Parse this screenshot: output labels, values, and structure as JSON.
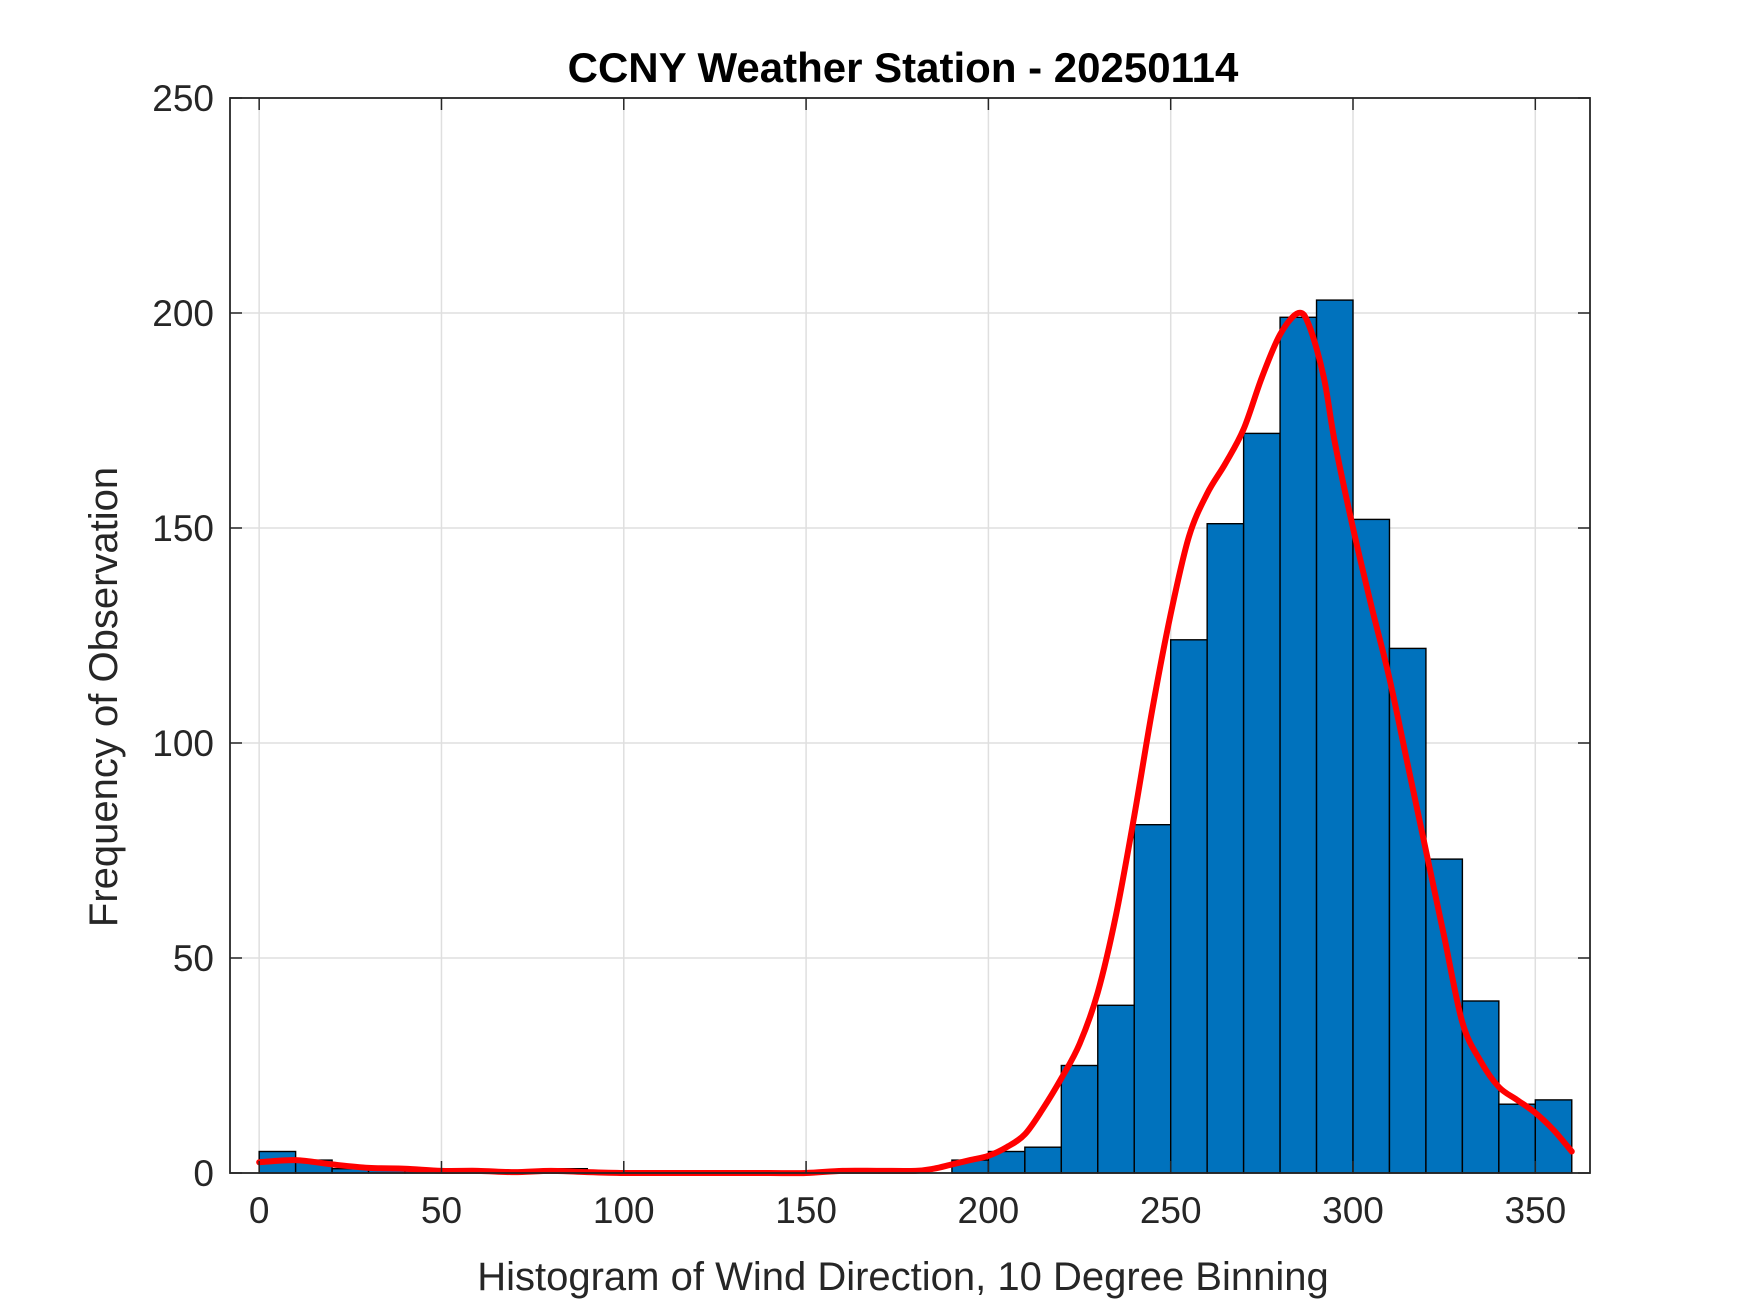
{
  "chart_data": {
    "type": "bar",
    "title": "CCNY Weather Station - 20250114",
    "xlabel": "Histogram of Wind Direction, 10 Degree Binning",
    "ylabel": "Frequency of Observation",
    "xlim": [
      -8,
      365
    ],
    "ylim": [
      0,
      250
    ],
    "xticks": [
      0,
      50,
      100,
      150,
      200,
      250,
      300,
      350
    ],
    "yticks": [
      0,
      50,
      100,
      150,
      200,
      250
    ],
    "grid": true,
    "bin_width": 10,
    "bins": [
      {
        "start": 0,
        "value": 5
      },
      {
        "start": 10,
        "value": 3
      },
      {
        "start": 20,
        "value": 1
      },
      {
        "start": 30,
        "value": 1
      },
      {
        "start": 40,
        "value": 1
      },
      {
        "start": 50,
        "value": 1
      },
      {
        "start": 60,
        "value": 0
      },
      {
        "start": 70,
        "value": 0
      },
      {
        "start": 80,
        "value": 1
      },
      {
        "start": 90,
        "value": 0
      },
      {
        "start": 100,
        "value": 0
      },
      {
        "start": 110,
        "value": 0
      },
      {
        "start": 120,
        "value": 0
      },
      {
        "start": 130,
        "value": 0
      },
      {
        "start": 140,
        "value": 0
      },
      {
        "start": 150,
        "value": 0
      },
      {
        "start": 160,
        "value": 1
      },
      {
        "start": 170,
        "value": 1
      },
      {
        "start": 180,
        "value": 0
      },
      {
        "start": 190,
        "value": 3
      },
      {
        "start": 200,
        "value": 5
      },
      {
        "start": 210,
        "value": 6
      },
      {
        "start": 220,
        "value": 25
      },
      {
        "start": 230,
        "value": 39
      },
      {
        "start": 240,
        "value": 81
      },
      {
        "start": 250,
        "value": 124
      },
      {
        "start": 260,
        "value": 151
      },
      {
        "start": 270,
        "value": 172
      },
      {
        "start": 280,
        "value": 199
      },
      {
        "start": 290,
        "value": 203
      },
      {
        "start": 300,
        "value": 152
      },
      {
        "start": 310,
        "value": 122
      },
      {
        "start": 320,
        "value": 73
      },
      {
        "start": 330,
        "value": 40
      },
      {
        "start": 340,
        "value": 16
      },
      {
        "start": 350,
        "value": 17
      }
    ],
    "fit_curve": {
      "x": [
        0,
        10,
        20,
        30,
        40,
        50,
        60,
        70,
        80,
        90,
        100,
        110,
        120,
        130,
        140,
        150,
        160,
        170,
        180,
        185,
        190,
        195,
        200,
        205,
        210,
        215,
        220,
        225,
        230,
        235,
        240,
        245,
        250,
        255,
        260,
        265,
        270,
        275,
        280,
        285,
        288,
        292,
        295,
        300,
        305,
        310,
        315,
        320,
        325,
        330,
        335,
        340,
        345,
        350,
        355,
        360
      ],
      "y": [
        2.5,
        3,
        2,
        1.2,
        1,
        0.5,
        0.5,
        0.2,
        0.5,
        0.2,
        0,
        0,
        0,
        0,
        0,
        0,
        0.5,
        0.5,
        0.5,
        1,
        2,
        3,
        4,
        6,
        9,
        15,
        22,
        30,
        42,
        60,
        83,
        108,
        130,
        148,
        158,
        165,
        173,
        185,
        195,
        200,
        197,
        185,
        170,
        150,
        132,
        115,
        95,
        75,
        55,
        35,
        26,
        20,
        17,
        14,
        10,
        5
      ]
    },
    "bar_color": "#0072BD",
    "bar_edge_color": "#000000",
    "curve_color": "#FF0000",
    "grid_color": "#dfdfdf",
    "axis_color": "#262626"
  }
}
